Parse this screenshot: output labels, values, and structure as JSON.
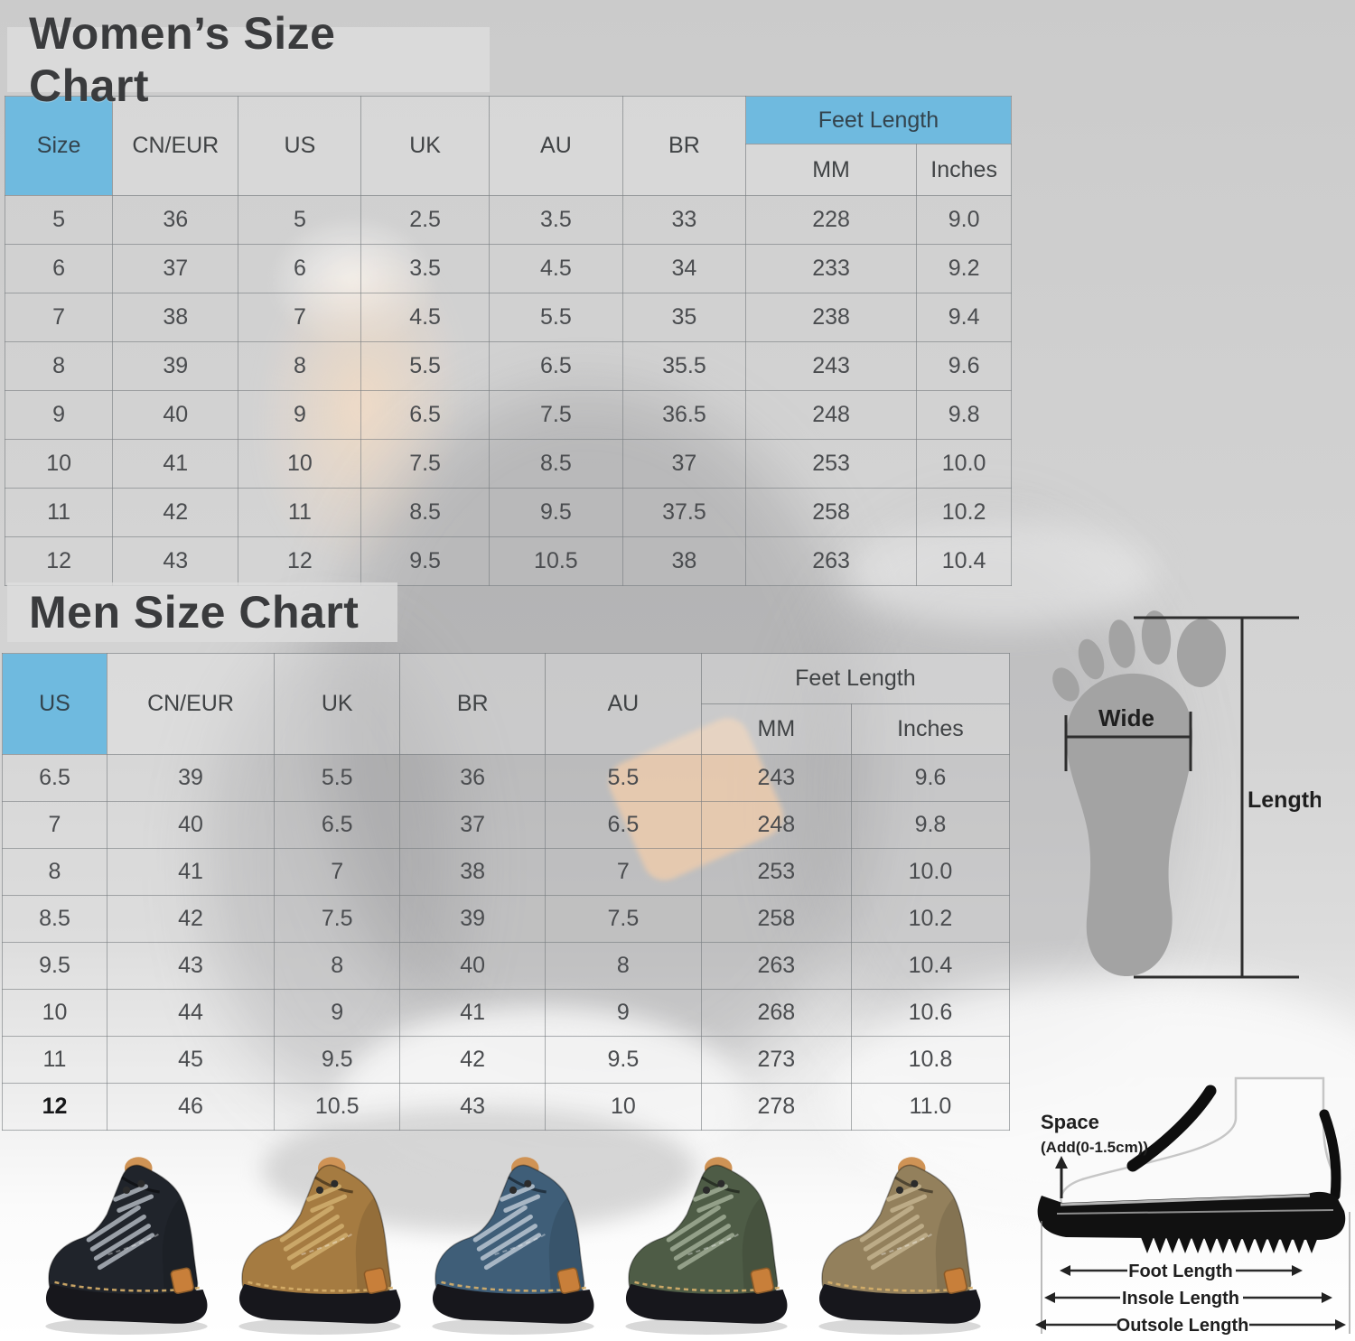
{
  "chart_data": [
    {
      "type": "table",
      "title": "Women’s Size Chart",
      "columns": [
        "Size",
        "CN/EUR",
        "US",
        "UK",
        "AU",
        "BR"
      ],
      "column_group": {
        "label": "Feet Length",
        "sub_columns": [
          "MM",
          "Inches"
        ]
      },
      "rows": [
        [
          "5",
          "36",
          "5",
          "2.5",
          "3.5",
          "33",
          "228",
          "9.0"
        ],
        [
          "6",
          "37",
          "6",
          "3.5",
          "4.5",
          "34",
          "233",
          "9.2"
        ],
        [
          "7",
          "38",
          "7",
          "4.5",
          "5.5",
          "35",
          "238",
          "9.4"
        ],
        [
          "8",
          "39",
          "8",
          "5.5",
          "6.5",
          "35.5",
          "243",
          "9.6"
        ],
        [
          "9",
          "40",
          "9",
          "6.5",
          "7.5",
          "36.5",
          "248",
          "9.8"
        ],
        [
          "10",
          "41",
          "10",
          "7.5",
          "8.5",
          "37",
          "253",
          "10.0"
        ],
        [
          "11",
          "42",
          "11",
          "8.5",
          "9.5",
          "37.5",
          "258",
          "10.2"
        ],
        [
          "12",
          "43",
          "12",
          "9.5",
          "10.5",
          "38",
          "263",
          "10.4"
        ]
      ]
    },
    {
      "type": "table",
      "title": "Men Size Chart",
      "columns": [
        "US",
        "CN/EUR",
        "UK",
        "BR",
        "AU"
      ],
      "column_group": {
        "label": "Feet Length",
        "sub_columns": [
          "MM",
          "Inches"
        ]
      },
      "rows": [
        [
          "6.5",
          "39",
          "5.5",
          "36",
          "5.5",
          "243",
          "9.6"
        ],
        [
          "7",
          "40",
          "6.5",
          "37",
          "6.5",
          "248",
          "9.8"
        ],
        [
          "8",
          "41",
          "7",
          "38",
          "7",
          "253",
          "10.0"
        ],
        [
          "8.5",
          "42",
          "7.5",
          "39",
          "7.5",
          "258",
          "10.2"
        ],
        [
          "9.5",
          "43",
          "8",
          "40",
          "8",
          "263",
          "10.4"
        ],
        [
          "10",
          "44",
          "9",
          "41",
          "9",
          "268",
          "10.6"
        ],
        [
          "11",
          "45",
          "9.5",
          "42",
          "9.5",
          "273",
          "10.8"
        ],
        [
          "12",
          "46",
          "10.5",
          "43",
          "10",
          "278",
          "11.0"
        ]
      ]
    }
  ],
  "foot_diagram": {
    "wide_label": "Wide",
    "length_label": "Length"
  },
  "sole_diagram": {
    "space_label": "Space",
    "space_note": "(Add(0-1.5cm))",
    "measurements": [
      "Foot Length",
      "Insole Length",
      "Outsole Length"
    ]
  },
  "products": [
    {
      "name": "black-boot",
      "body": "#20242b",
      "lace": "#9aa0a8",
      "accent": "#c87f3a"
    },
    {
      "name": "brown-boot",
      "body": "#a57b41",
      "lace": "#caa768",
      "accent": "#c87f3a"
    },
    {
      "name": "blue-boot",
      "body": "#3f5e78",
      "lace": "#a7b6c4",
      "accent": "#c87f3a"
    },
    {
      "name": "green-boot",
      "body": "#4e5c46",
      "lace": "#93a089",
      "accent": "#c87f3a"
    },
    {
      "name": "khaki-boot",
      "body": "#93805c",
      "lace": "#bcab87",
      "accent": "#c87f3a"
    }
  ],
  "colors": {
    "accent_blue": "#6fbadf",
    "table_border": "#7a7f83",
    "title_text": "#3a3b3d",
    "sole_black": "#111111"
  }
}
